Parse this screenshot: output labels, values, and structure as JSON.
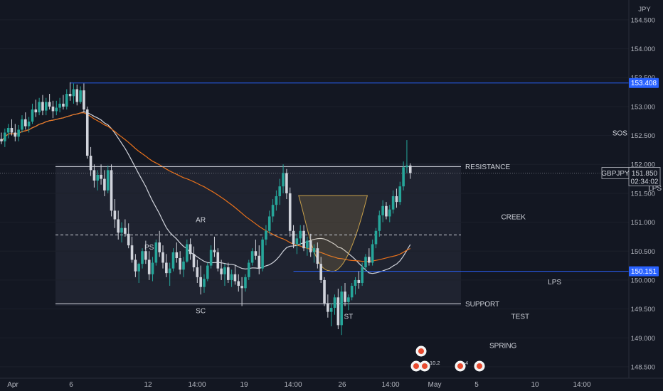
{
  "chart_data": {
    "type": "candlestick",
    "symbol": "GBPJPY",
    "currency": "JPY",
    "price_range": [
      148.45,
      154.72
    ],
    "y_ticks": [
      "154.500",
      "154.000",
      "153.500",
      "153.000",
      "152.500",
      "152.000",
      "151.500",
      "151.000",
      "150.500",
      "150.000",
      "149.500",
      "149.000",
      "148.500"
    ],
    "x_ticks": [
      "Apr",
      "6",
      "12",
      "14:00",
      "19",
      "14:00",
      "26",
      "14:00",
      "May",
      "5",
      "10",
      "14:00"
    ],
    "last_price": "151.850",
    "countdown": "02:34:02",
    "price_tags": [
      "153.408",
      "150.151"
    ],
    "levels": [
      {
        "label": "RESISTANCE",
        "price": 151.96,
        "color": "#d1d4dc"
      },
      {
        "label": "SUPPORT",
        "price": 149.59,
        "color": "#d1d4dc"
      },
      {
        "label": "",
        "price": 150.78,
        "color": "#d1d4dc",
        "style": "dashed"
      },
      {
        "label": "",
        "price": 153.408,
        "color": "#2962ff"
      },
      {
        "label": "",
        "price": 150.151,
        "color": "#2962ff"
      }
    ],
    "wyckoff_labels": [
      {
        "text": "PS",
        "at": [
          43,
          150.7
        ],
        "place": "below"
      },
      {
        "text": "AR",
        "at": [
          58,
          150.9
        ],
        "place": "above"
      },
      {
        "text": "SC",
        "at": [
          58,
          149.6
        ],
        "place": "below"
      },
      {
        "text": "ST",
        "at": [
          101,
          149.5
        ],
        "place": "below"
      },
      {
        "text": "CREEK",
        "at": [
          149,
          151.1
        ],
        "place": "center"
      },
      {
        "text": "SPRING",
        "at": [
          146,
          149.0
        ],
        "place": "below"
      },
      {
        "text": "TEST",
        "at": [
          151,
          149.5
        ],
        "place": "below"
      },
      {
        "text": "LPS",
        "at": [
          161,
          150.1
        ],
        "place": "below"
      },
      {
        "text": "SOS",
        "at": [
          180,
          152.4
        ],
        "place": "above"
      },
      {
        "text": "LPS",
        "at": [
          187,
          151.6
        ],
        "place": "right"
      }
    ],
    "colors": {
      "up": "#26a69a",
      "down": "#d1d4dc",
      "ma_short": "#d1d4dc",
      "ma_long": "#e8711b",
      "blue": "#2962ff",
      "creek": "#c8a04a",
      "bg": "#131722"
    },
    "candles": [
      [
        152.44,
        152.55,
        152.35,
        152.4
      ],
      [
        152.4,
        152.62,
        152.3,
        152.55
      ],
      [
        152.55,
        152.7,
        152.45,
        152.63
      ],
      [
        152.63,
        152.78,
        152.5,
        152.55
      ],
      [
        152.55,
        152.7,
        152.4,
        152.48
      ],
      [
        152.48,
        152.68,
        152.4,
        152.6
      ],
      [
        152.6,
        152.85,
        152.55,
        152.78
      ],
      [
        152.78,
        152.9,
        152.6,
        152.66
      ],
      [
        152.66,
        152.82,
        152.55,
        152.74
      ],
      [
        152.74,
        153.05,
        152.7,
        152.95
      ],
      [
        152.95,
        153.12,
        152.82,
        152.9
      ],
      [
        152.9,
        153.15,
        152.85,
        153.08
      ],
      [
        153.08,
        153.2,
        152.85,
        152.93
      ],
      [
        152.93,
        153.15,
        152.85,
        153.08
      ],
      [
        153.08,
        153.22,
        152.95,
        153.0
      ],
      [
        153.0,
        153.1,
        152.8,
        152.92
      ],
      [
        152.92,
        153.1,
        152.85,
        152.98
      ],
      [
        152.98,
        153.15,
        152.9,
        153.05
      ],
      [
        153.05,
        153.2,
        152.95,
        153.0
      ],
      [
        153.0,
        153.3,
        152.95,
        153.22
      ],
      [
        153.22,
        153.42,
        153.1,
        153.18
      ],
      [
        153.18,
        153.4,
        153.05,
        153.3
      ],
      [
        153.3,
        153.38,
        153.02,
        153.08
      ],
      [
        153.08,
        153.35,
        153.05,
        153.28
      ],
      [
        153.28,
        153.4,
        152.9,
        152.95
      ],
      [
        152.95,
        153.0,
        152.1,
        152.15
      ],
      [
        152.15,
        152.3,
        151.8,
        151.9
      ],
      [
        151.9,
        152.0,
        151.6,
        151.72
      ],
      [
        151.72,
        151.9,
        151.55,
        151.82
      ],
      [
        151.82,
        152.0,
        151.65,
        151.75
      ],
      [
        151.75,
        151.9,
        151.45,
        151.55
      ],
      [
        151.55,
        151.98,
        151.5,
        151.9
      ],
      [
        151.9,
        152.0,
        151.1,
        151.2
      ],
      [
        151.2,
        151.4,
        150.9,
        151.05
      ],
      [
        151.05,
        151.2,
        150.7,
        150.82
      ],
      [
        150.82,
        151.0,
        150.65,
        150.9
      ],
      [
        150.9,
        151.05,
        150.75,
        150.8
      ],
      [
        150.8,
        150.98,
        150.55,
        150.6
      ],
      [
        150.6,
        150.75,
        150.3,
        150.35
      ],
      [
        150.35,
        150.45,
        150.05,
        150.15
      ],
      [
        150.15,
        150.3,
        149.95,
        150.28
      ],
      [
        150.28,
        150.55,
        150.2,
        150.5
      ],
      [
        150.5,
        150.68,
        150.28,
        150.35
      ],
      [
        150.35,
        150.5,
        150.0,
        150.1
      ],
      [
        150.1,
        150.4,
        149.98,
        150.3
      ],
      [
        150.3,
        150.7,
        150.25,
        150.65
      ],
      [
        150.65,
        150.85,
        150.4,
        150.48
      ],
      [
        150.48,
        150.6,
        150.2,
        150.3
      ],
      [
        150.3,
        150.45,
        150.05,
        150.12
      ],
      [
        150.12,
        150.3,
        149.9,
        150.2
      ],
      [
        150.2,
        150.55,
        150.15,
        150.48
      ],
      [
        150.48,
        150.65,
        150.3,
        150.38
      ],
      [
        150.38,
        150.5,
        150.1,
        150.18
      ],
      [
        150.18,
        150.4,
        150.05,
        150.32
      ],
      [
        150.32,
        150.7,
        150.3,
        150.62
      ],
      [
        150.62,
        150.72,
        150.35,
        150.45
      ],
      [
        150.45,
        150.58,
        150.15,
        150.22
      ],
      [
        150.22,
        150.35,
        149.95,
        150.05
      ],
      [
        150.05,
        150.25,
        149.75,
        149.88
      ],
      [
        149.88,
        150.1,
        149.78,
        150.02
      ],
      [
        150.02,
        150.3,
        149.98,
        150.25
      ],
      [
        150.25,
        150.6,
        150.2,
        150.52
      ],
      [
        150.52,
        150.75,
        150.4,
        150.48
      ],
      [
        150.48,
        150.55,
        150.15,
        150.2
      ],
      [
        150.2,
        150.35,
        150.0,
        150.1
      ],
      [
        150.1,
        150.28,
        149.9,
        150.22
      ],
      [
        150.22,
        150.3,
        149.95,
        150.0
      ],
      [
        150.0,
        150.18,
        149.88,
        150.1
      ],
      [
        150.1,
        150.25,
        149.92,
        149.98
      ],
      [
        149.98,
        150.1,
        149.8,
        149.9
      ],
      [
        149.9,
        150.05,
        149.55,
        149.86
      ],
      [
        149.86,
        150.1,
        149.8,
        150.05
      ],
      [
        150.05,
        150.35,
        150.0,
        150.3
      ],
      [
        150.3,
        150.55,
        150.25,
        150.5
      ],
      [
        150.5,
        150.7,
        150.35,
        150.42
      ],
      [
        150.42,
        150.6,
        150.1,
        150.2
      ],
      [
        150.2,
        150.75,
        150.15,
        150.7
      ],
      [
        150.7,
        150.95,
        150.6,
        150.85
      ],
      [
        150.85,
        151.2,
        150.8,
        151.1
      ],
      [
        151.1,
        151.4,
        151.0,
        151.3
      ],
      [
        151.3,
        151.55,
        151.2,
        151.45
      ],
      [
        151.45,
        151.75,
        151.3,
        151.62
      ],
      [
        151.62,
        152.0,
        151.5,
        151.85
      ],
      [
        151.85,
        151.92,
        151.4,
        151.5
      ],
      [
        151.5,
        151.6,
        150.75,
        150.85
      ],
      [
        150.85,
        150.95,
        150.55,
        150.62
      ],
      [
        150.62,
        150.8,
        150.45,
        150.72
      ],
      [
        150.72,
        150.95,
        150.6,
        150.85
      ],
      [
        150.85,
        150.95,
        150.5,
        150.55
      ],
      [
        150.55,
        150.75,
        150.42,
        150.68
      ],
      [
        150.68,
        150.8,
        150.4,
        150.48
      ],
      [
        150.48,
        150.62,
        150.3,
        150.55
      ],
      [
        150.55,
        150.65,
        150.2,
        150.28
      ],
      [
        150.28,
        150.4,
        149.95,
        150.0
      ],
      [
        150.0,
        150.05,
        149.55,
        149.6
      ],
      [
        149.6,
        149.75,
        149.35,
        149.45
      ],
      [
        149.45,
        149.6,
        149.2,
        149.52
      ],
      [
        149.52,
        149.75,
        149.4,
        149.7
      ],
      [
        149.7,
        149.85,
        149.15,
        149.22
      ],
      [
        149.22,
        149.9,
        149.05,
        149.8
      ],
      [
        149.8,
        149.95,
        149.55,
        149.62
      ],
      [
        149.62,
        149.75,
        149.48,
        149.7
      ],
      [
        149.7,
        149.95,
        149.65,
        149.9
      ],
      [
        149.9,
        150.05,
        149.75,
        150.0
      ],
      [
        150.0,
        150.15,
        149.85,
        149.95
      ],
      [
        149.95,
        150.3,
        149.9,
        150.22
      ],
      [
        150.22,
        150.45,
        150.15,
        150.4
      ],
      [
        150.4,
        150.55,
        150.25,
        150.3
      ],
      [
        150.3,
        150.7,
        150.25,
        150.62
      ],
      [
        150.62,
        150.9,
        150.55,
        150.85
      ],
      [
        150.85,
        151.2,
        150.75,
        151.12
      ],
      [
        151.12,
        151.38,
        151.0,
        151.28
      ],
      [
        151.28,
        151.35,
        151.05,
        151.1
      ],
      [
        151.1,
        151.3,
        151.0,
        151.22
      ],
      [
        151.22,
        151.55,
        151.15,
        151.45
      ],
      [
        151.45,
        151.58,
        151.25,
        151.35
      ],
      [
        151.35,
        151.7,
        151.3,
        151.62
      ],
      [
        151.62,
        152.05,
        151.55,
        151.95
      ],
      [
        151.95,
        152.42,
        151.85,
        151.98
      ],
      [
        151.98,
        152.02,
        151.75,
        151.85
      ]
    ]
  },
  "events": {
    "count_badge": "10.2",
    "small_badge": "4"
  }
}
